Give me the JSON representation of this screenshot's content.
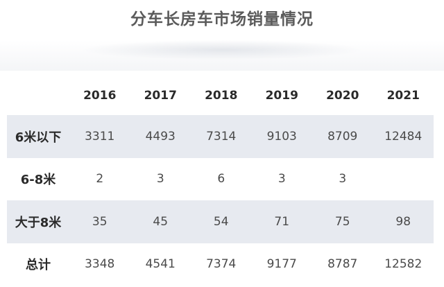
{
  "title": "分车长房车市场销量情况",
  "chart_data": {
    "type": "table",
    "title": "分车长房车市场销量情况",
    "columns": [
      "",
      "2016",
      "2017",
      "2018",
      "2019",
      "2020",
      "2021"
    ],
    "rows": [
      {
        "label": "6米以下",
        "values": [
          "3311",
          "4493",
          "7314",
          "9103",
          "8709",
          "12484"
        ]
      },
      {
        "label": "6-8米",
        "values": [
          "2",
          "3",
          "6",
          "3",
          "3",
          ""
        ]
      },
      {
        "label": "大于8米",
        "values": [
          "35",
          "45",
          "54",
          "71",
          "75",
          "98"
        ]
      },
      {
        "label": "总计",
        "values": [
          "3348",
          "4541",
          "7374",
          "9177",
          "8787",
          "12582"
        ]
      }
    ]
  },
  "colors": {
    "title": "#5b5b5b",
    "shaded_row": "#e7eaf0",
    "text": "#4a4a4a"
  }
}
